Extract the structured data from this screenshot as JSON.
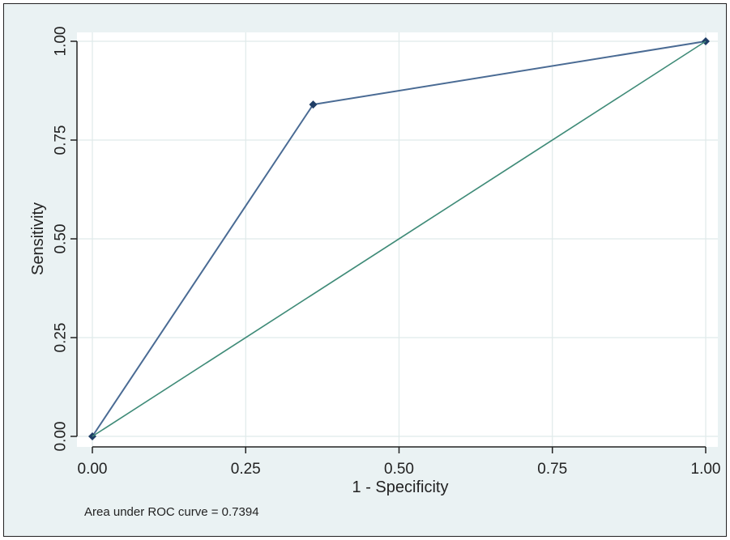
{
  "chart_data": {
    "type": "line",
    "xlabel": "1 - Specificity",
    "ylabel": "Sensitivity",
    "xlim": [
      0,
      1
    ],
    "ylim": [
      0,
      1
    ],
    "x_ticks": [
      "0.00",
      "0.25",
      "0.50",
      "0.75",
      "1.00"
    ],
    "y_ticks": [
      "0.00",
      "0.25",
      "0.50",
      "0.75",
      "1.00"
    ],
    "grid": true,
    "legend": false,
    "annotation": "Area under ROC curve = 0.7394",
    "series": [
      {
        "kind": "roc-curve",
        "color": "#4a6b94",
        "marker_color": "#1f3d66",
        "x": [
          0,
          0.36,
          1
        ],
        "y": [
          0,
          0.84,
          1
        ]
      },
      {
        "kind": "reference-line",
        "color": "#3f8b78",
        "x": [
          0,
          1
        ],
        "y": [
          0,
          1
        ]
      }
    ],
    "colors": {
      "outer_background": "#eaf2f3",
      "plot_background": "#ffffff",
      "grid": "#dfeaea",
      "axis": "#222222"
    }
  }
}
